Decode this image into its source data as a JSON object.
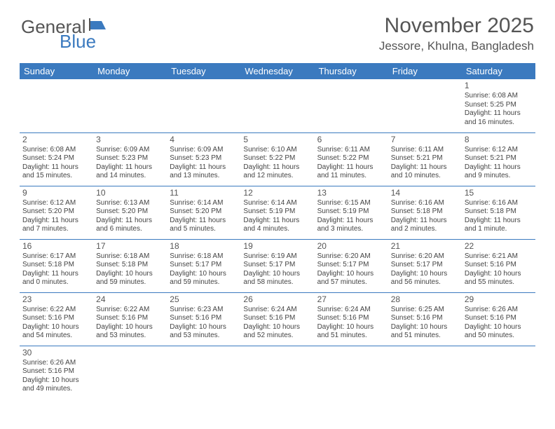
{
  "logo": {
    "text1": "General",
    "text2": "Blue"
  },
  "title": "November 2025",
  "location": "Jessore, Khulna, Bangladesh",
  "colors": {
    "header_bg": "#3b7abf",
    "header_text": "#ffffff",
    "body_text": "#444444",
    "title_text": "#555555"
  },
  "day_headers": [
    "Sunday",
    "Monday",
    "Tuesday",
    "Wednesday",
    "Thursday",
    "Friday",
    "Saturday"
  ],
  "weeks": [
    [
      null,
      null,
      null,
      null,
      null,
      null,
      {
        "n": "1",
        "sr": "Sunrise: 6:08 AM",
        "ss": "Sunset: 5:25 PM",
        "dl": "Daylight: 11 hours and 16 minutes."
      }
    ],
    [
      {
        "n": "2",
        "sr": "Sunrise: 6:08 AM",
        "ss": "Sunset: 5:24 PM",
        "dl": "Daylight: 11 hours and 15 minutes."
      },
      {
        "n": "3",
        "sr": "Sunrise: 6:09 AM",
        "ss": "Sunset: 5:23 PM",
        "dl": "Daylight: 11 hours and 14 minutes."
      },
      {
        "n": "4",
        "sr": "Sunrise: 6:09 AM",
        "ss": "Sunset: 5:23 PM",
        "dl": "Daylight: 11 hours and 13 minutes."
      },
      {
        "n": "5",
        "sr": "Sunrise: 6:10 AM",
        "ss": "Sunset: 5:22 PM",
        "dl": "Daylight: 11 hours and 12 minutes."
      },
      {
        "n": "6",
        "sr": "Sunrise: 6:11 AM",
        "ss": "Sunset: 5:22 PM",
        "dl": "Daylight: 11 hours and 11 minutes."
      },
      {
        "n": "7",
        "sr": "Sunrise: 6:11 AM",
        "ss": "Sunset: 5:21 PM",
        "dl": "Daylight: 11 hours and 10 minutes."
      },
      {
        "n": "8",
        "sr": "Sunrise: 6:12 AM",
        "ss": "Sunset: 5:21 PM",
        "dl": "Daylight: 11 hours and 9 minutes."
      }
    ],
    [
      {
        "n": "9",
        "sr": "Sunrise: 6:12 AM",
        "ss": "Sunset: 5:20 PM",
        "dl": "Daylight: 11 hours and 7 minutes."
      },
      {
        "n": "10",
        "sr": "Sunrise: 6:13 AM",
        "ss": "Sunset: 5:20 PM",
        "dl": "Daylight: 11 hours and 6 minutes."
      },
      {
        "n": "11",
        "sr": "Sunrise: 6:14 AM",
        "ss": "Sunset: 5:20 PM",
        "dl": "Daylight: 11 hours and 5 minutes."
      },
      {
        "n": "12",
        "sr": "Sunrise: 6:14 AM",
        "ss": "Sunset: 5:19 PM",
        "dl": "Daylight: 11 hours and 4 minutes."
      },
      {
        "n": "13",
        "sr": "Sunrise: 6:15 AM",
        "ss": "Sunset: 5:19 PM",
        "dl": "Daylight: 11 hours and 3 minutes."
      },
      {
        "n": "14",
        "sr": "Sunrise: 6:16 AM",
        "ss": "Sunset: 5:18 PM",
        "dl": "Daylight: 11 hours and 2 minutes."
      },
      {
        "n": "15",
        "sr": "Sunrise: 6:16 AM",
        "ss": "Sunset: 5:18 PM",
        "dl": "Daylight: 11 hours and 1 minute."
      }
    ],
    [
      {
        "n": "16",
        "sr": "Sunrise: 6:17 AM",
        "ss": "Sunset: 5:18 PM",
        "dl": "Daylight: 11 hours and 0 minutes."
      },
      {
        "n": "17",
        "sr": "Sunrise: 6:18 AM",
        "ss": "Sunset: 5:18 PM",
        "dl": "Daylight: 10 hours and 59 minutes."
      },
      {
        "n": "18",
        "sr": "Sunrise: 6:18 AM",
        "ss": "Sunset: 5:17 PM",
        "dl": "Daylight: 10 hours and 59 minutes."
      },
      {
        "n": "19",
        "sr": "Sunrise: 6:19 AM",
        "ss": "Sunset: 5:17 PM",
        "dl": "Daylight: 10 hours and 58 minutes."
      },
      {
        "n": "20",
        "sr": "Sunrise: 6:20 AM",
        "ss": "Sunset: 5:17 PM",
        "dl": "Daylight: 10 hours and 57 minutes."
      },
      {
        "n": "21",
        "sr": "Sunrise: 6:20 AM",
        "ss": "Sunset: 5:17 PM",
        "dl": "Daylight: 10 hours and 56 minutes."
      },
      {
        "n": "22",
        "sr": "Sunrise: 6:21 AM",
        "ss": "Sunset: 5:16 PM",
        "dl": "Daylight: 10 hours and 55 minutes."
      }
    ],
    [
      {
        "n": "23",
        "sr": "Sunrise: 6:22 AM",
        "ss": "Sunset: 5:16 PM",
        "dl": "Daylight: 10 hours and 54 minutes."
      },
      {
        "n": "24",
        "sr": "Sunrise: 6:22 AM",
        "ss": "Sunset: 5:16 PM",
        "dl": "Daylight: 10 hours and 53 minutes."
      },
      {
        "n": "25",
        "sr": "Sunrise: 6:23 AM",
        "ss": "Sunset: 5:16 PM",
        "dl": "Daylight: 10 hours and 53 minutes."
      },
      {
        "n": "26",
        "sr": "Sunrise: 6:24 AM",
        "ss": "Sunset: 5:16 PM",
        "dl": "Daylight: 10 hours and 52 minutes."
      },
      {
        "n": "27",
        "sr": "Sunrise: 6:24 AM",
        "ss": "Sunset: 5:16 PM",
        "dl": "Daylight: 10 hours and 51 minutes."
      },
      {
        "n": "28",
        "sr": "Sunrise: 6:25 AM",
        "ss": "Sunset: 5:16 PM",
        "dl": "Daylight: 10 hours and 51 minutes."
      },
      {
        "n": "29",
        "sr": "Sunrise: 6:26 AM",
        "ss": "Sunset: 5:16 PM",
        "dl": "Daylight: 10 hours and 50 minutes."
      }
    ],
    [
      {
        "n": "30",
        "sr": "Sunrise: 6:26 AM",
        "ss": "Sunset: 5:16 PM",
        "dl": "Daylight: 10 hours and 49 minutes."
      },
      null,
      null,
      null,
      null,
      null,
      null
    ]
  ]
}
